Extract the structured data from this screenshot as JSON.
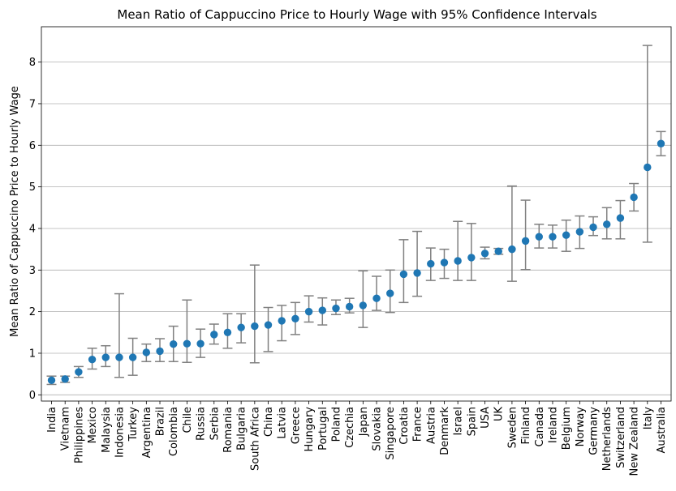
{
  "chart_data": {
    "type": "errorbar",
    "title": "Mean Ratio of Cappuccino Price to Hourly Wage with 95% Confidence Intervals",
    "xlabel": "",
    "ylabel": "Mean Ratio of Cappuccino Price to Hourly Wage",
    "ylim": [
      -0.15,
      8.85
    ],
    "yticks": [
      0,
      1,
      2,
      3,
      4,
      5,
      6,
      7,
      8
    ],
    "grid": "horizontal",
    "colors": {
      "point": "#1f77b4",
      "errorbar": "#808080",
      "grid": "#b0b0b0",
      "axis": "#000000"
    },
    "categories": [
      "India",
      "Vietnam",
      "Philippines",
      "Mexico",
      "Malaysia",
      "Indonesia",
      "Turkey",
      "Argentina",
      "Brazil",
      "Colombia",
      "Chile",
      "Russia",
      "Serbia",
      "Romania",
      "Bulgaria",
      "South Africa",
      "China",
      "Latvia",
      "Greece",
      "Hungary",
      "Portugal",
      "Poland",
      "Czechia",
      "Japan",
      "Slovakia",
      "Singapore",
      "Croatia",
      "France",
      "Austria",
      "Denmark",
      "Israel",
      "Spain",
      "USA",
      "UK",
      "Sweden",
      "Finland",
      "Canada",
      "Ireland",
      "Belgium",
      "Norway",
      "Germany",
      "Netherlands",
      "Switzerland",
      "New Zealand",
      "Italy",
      "Australia"
    ],
    "values": [
      0.35,
      0.38,
      0.55,
      0.85,
      0.9,
      0.9,
      0.9,
      1.02,
      1.05,
      1.22,
      1.23,
      1.23,
      1.45,
      1.5,
      1.62,
      1.65,
      1.68,
      1.78,
      1.83,
      2.0,
      2.03,
      2.08,
      2.12,
      2.15,
      2.32,
      2.44,
      2.9,
      2.93,
      3.15,
      3.18,
      3.22,
      3.3,
      3.4,
      3.45,
      3.5,
      3.7,
      3.8,
      3.8,
      3.84,
      3.92,
      4.03,
      4.1,
      4.25,
      4.75,
      5.47,
      6.04
    ],
    "lower": [
      0.25,
      0.3,
      0.42,
      0.62,
      0.68,
      0.42,
      0.47,
      0.8,
      0.8,
      0.8,
      0.78,
      0.9,
      1.22,
      1.12,
      1.25,
      0.77,
      1.04,
      1.3,
      1.45,
      1.75,
      1.68,
      1.93,
      1.97,
      1.62,
      2.03,
      1.98,
      2.22,
      2.37,
      2.75,
      2.8,
      2.75,
      2.75,
      3.27,
      3.38,
      2.73,
      3.01,
      3.53,
      3.53,
      3.45,
      3.52,
      3.83,
      3.75,
      3.75,
      4.42,
      3.67,
      5.75
    ],
    "upper": [
      0.45,
      0.45,
      0.68,
      1.12,
      1.18,
      2.43,
      1.36,
      1.22,
      1.35,
      1.65,
      2.28,
      1.58,
      1.7,
      1.95,
      1.95,
      3.12,
      2.1,
      2.15,
      2.22,
      2.38,
      2.33,
      2.28,
      2.32,
      2.98,
      2.85,
      3.0,
      3.73,
      3.93,
      3.53,
      3.5,
      4.17,
      4.12,
      3.55,
      3.52,
      5.02,
      4.68,
      4.1,
      4.08,
      4.2,
      4.3,
      4.28,
      4.5,
      4.67,
      5.08,
      8.4,
      6.33
    ]
  }
}
